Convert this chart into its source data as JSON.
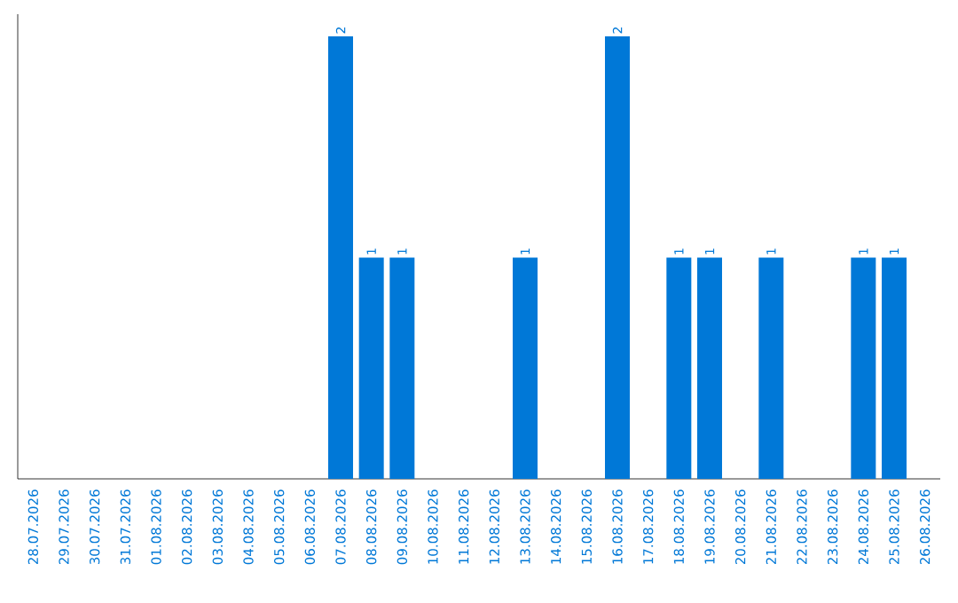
{
  "chart_data": {
    "type": "bar",
    "categories": [
      "28.07.2026",
      "29.07.2026",
      "30.07.2026",
      "31.07.2026",
      "01.08.2026",
      "02.08.2026",
      "03.08.2026",
      "04.08.2026",
      "05.08.2026",
      "06.08.2026",
      "07.08.2026",
      "08.08.2026",
      "09.08.2026",
      "10.08.2026",
      "11.08.2026",
      "12.08.2026",
      "13.08.2026",
      "14.08.2026",
      "15.08.2026",
      "16.08.2026",
      "17.08.2026",
      "18.08.2026",
      "19.08.2026",
      "20.08.2026",
      "21.08.2026",
      "22.08.2026",
      "23.08.2026",
      "24.08.2026",
      "25.08.2026",
      "26.08.2026"
    ],
    "values": [
      0,
      0,
      0,
      0,
      0,
      0,
      0,
      0,
      0,
      0,
      2,
      1,
      1,
      0,
      0,
      0,
      1,
      0,
      0,
      2,
      0,
      1,
      1,
      0,
      1,
      0,
      0,
      1,
      1,
      0
    ],
    "value_labels": [
      null,
      null,
      null,
      null,
      null,
      null,
      null,
      null,
      null,
      null,
      "2",
      "1",
      "1",
      null,
      null,
      null,
      "1",
      null,
      null,
      "2",
      null,
      "1",
      "1",
      null,
      "1",
      null,
      null,
      "1",
      "1",
      null
    ],
    "color": "#0078d7",
    "ylim": [
      0,
      2.1
    ],
    "tick_labels": "x",
    "grid": false
  }
}
